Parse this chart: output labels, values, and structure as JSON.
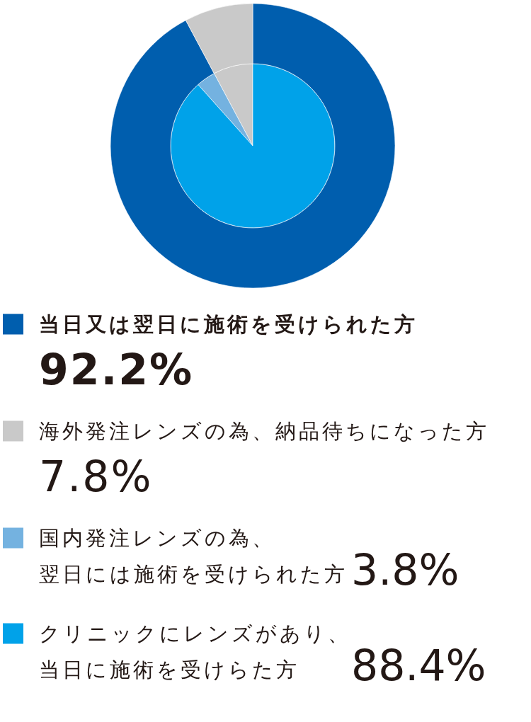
{
  "chart_data": {
    "type": "donut",
    "categories": [
      "当日又は翌日に施術を受けられた方",
      "海外発注レンズの為、納品待ちになった方",
      "国内発注レンズの為、翌日には施術を受けられた方",
      "クリニックにレンズがあり、当日に施術を受けらた方"
    ],
    "series": [
      {
        "type": "pie",
        "values": [
          null,
          7.8,
          3.8,
          88.4
        ],
        "colors": [
          null,
          "#c9c9c9",
          "#74b2e0",
          "#00a2e9"
        ],
        "value_labels": [
          null,
          null,
          "3.8%",
          "88.4%"
        ]
      },
      {
        "type": "donut",
        "values": [
          92.2,
          7.8,
          null,
          null
        ],
        "colors": [
          "#005eae",
          "#c9c9c9",
          null,
          null
        ],
        "value_labels": [
          "92.2%",
          "7.8%",
          null,
          null
        ]
      }
    ],
    "legend": "bottom"
  }
}
